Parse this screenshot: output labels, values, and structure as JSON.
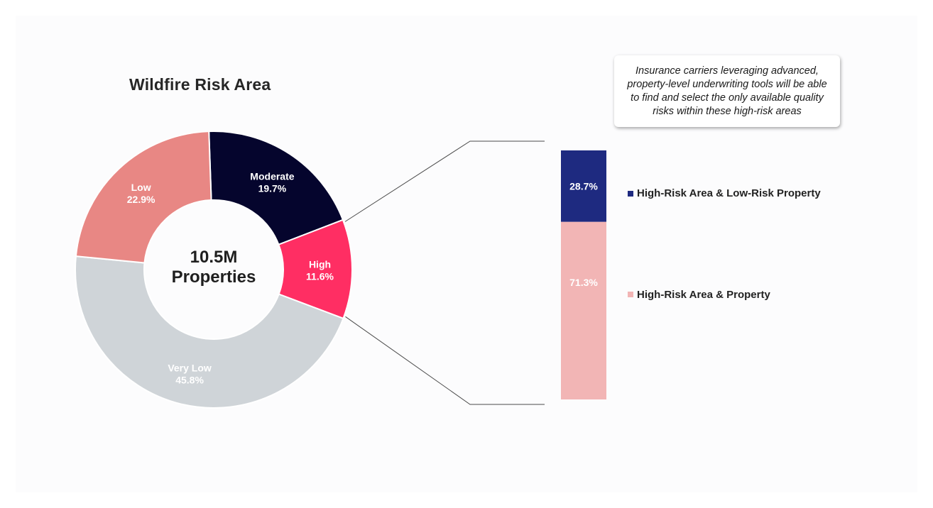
{
  "callout": {
    "text": "Insurance carriers leveraging advanced, property-level underwriting tools will be able to find and select the only available quality risks within these high-risk areas"
  },
  "chart_data": [
    {
      "type": "pie",
      "title": "Wildfire Risk Area",
      "center_label": [
        "10.5M",
        "Properties"
      ],
      "slices": [
        {
          "name": "Moderate",
          "label": "19.7%",
          "value": 19.7,
          "color": "#05052d",
          "text_color": "#ffffff"
        },
        {
          "name": "High",
          "label": "11.6%",
          "value": 11.6,
          "color": "#ff2e63",
          "text_color": "#ffffff"
        },
        {
          "name": "Very Low",
          "label": "45.8%",
          "value": 45.8,
          "color": "#cfd4d8",
          "text_color": "#ffffff"
        },
        {
          "name": "Low",
          "label": "22.9%",
          "value": 22.9,
          "color": "#e88784",
          "text_color": "#ffffff"
        }
      ]
    },
    {
      "type": "bar",
      "stacked": true,
      "breakdown_of": "High",
      "series": [
        {
          "name": "High-Risk Area & Low-Risk Property",
          "label": "28.7%",
          "value": 28.7,
          "color": "#1e2a80",
          "text_color": "#ffffff"
        },
        {
          "name": "High-Risk Area & Property",
          "label": "71.3%",
          "value": 71.3,
          "color": "#f2b5b5",
          "text_color": "#ffffff"
        }
      ]
    }
  ]
}
